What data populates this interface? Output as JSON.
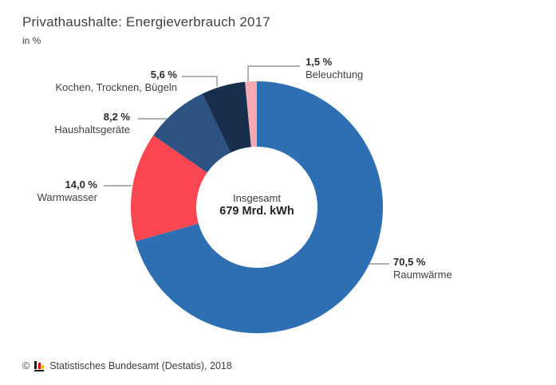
{
  "header": {
    "title": "Privathaushalte: Energieverbrauch 2017",
    "subtitle": "in %"
  },
  "chart_data": {
    "type": "pie",
    "variant": "donut",
    "title": "Privathaushalte: Energieverbrauch 2017",
    "unit": "%",
    "direction": "clockwise",
    "start_angle_deg_from_top": 0,
    "center_label": {
      "line1": "Insgesamt",
      "line2": "679 Mrd. kWh"
    },
    "slices": [
      {
        "name": "Raumwärme",
        "value": 70.5,
        "pct_label": "70,5 %",
        "color": "#2e6fb3"
      },
      {
        "name": "Warmwasser",
        "value": 14.0,
        "pct_label": "14,0 %",
        "color": "#fa4650"
      },
      {
        "name": "Haushaltsgeräte",
        "value": 8.2,
        "pct_label": "8,2 %",
        "color": "#2b5280"
      },
      {
        "name": "Kochen, Trocknen, Bügeln",
        "value": 5.6,
        "pct_label": "5,6 %",
        "color": "#172f4d"
      },
      {
        "name": "Beleuchtung",
        "value": 1.5,
        "pct_label": "1,5 %",
        "color": "#f6a9b2"
      }
    ],
    "leader_line_color": "#7f7f7f"
  },
  "footer": {
    "copyright": "©",
    "source": "Statistisches Bundesamt (Destatis), 2018",
    "logo_colors": {
      "black": "#1a1a1a",
      "red": "#e2001a",
      "gold": "#f8c300"
    }
  }
}
